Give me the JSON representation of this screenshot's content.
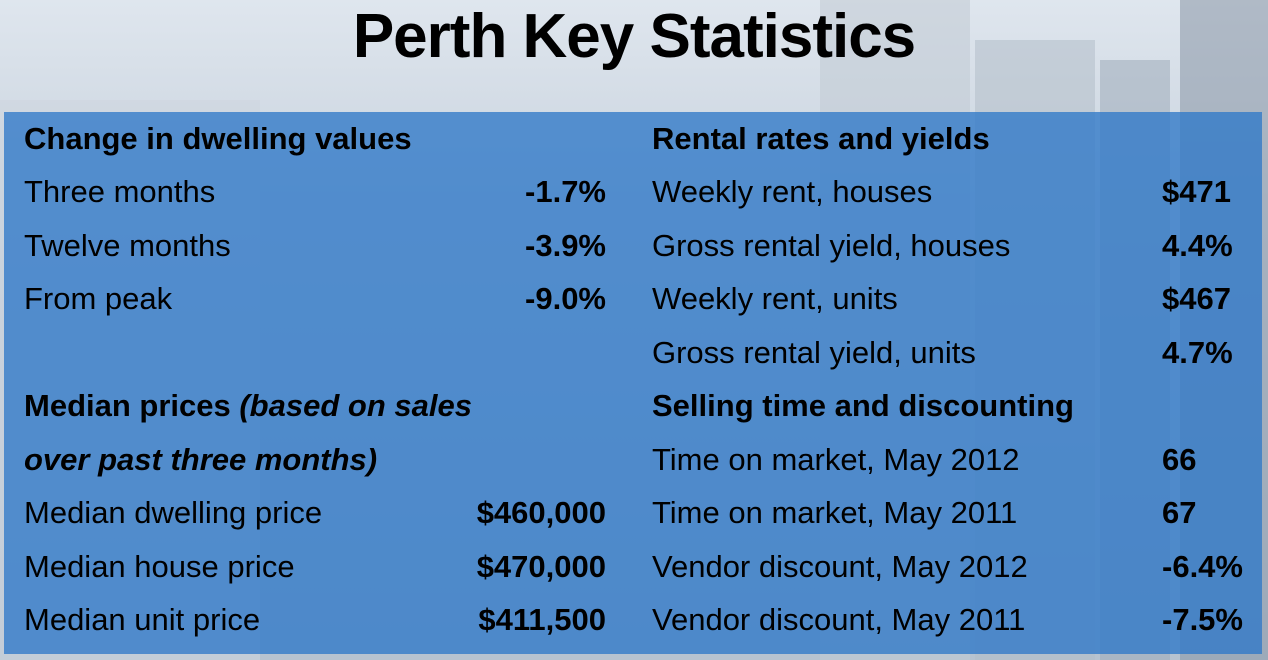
{
  "title": "Perth Key Statistics",
  "left": {
    "dwelling_heading": "Change in dwelling values",
    "dwelling_rows": [
      {
        "label": "Three months",
        "value": "-1.7%"
      },
      {
        "label": "Twelve months",
        "value": "-3.9%"
      },
      {
        "label": "From peak",
        "value": "-9.0%"
      }
    ],
    "median_heading_bold": "Median prices ",
    "median_heading_italic_1": "(based on sales",
    "median_heading_italic_2": "over past three months)",
    "median_rows": [
      {
        "label": "Median dwelling price",
        "value": "$460,000"
      },
      {
        "label": "Median house price",
        "value": "$470,000"
      },
      {
        "label": "Median unit price",
        "value": "$411,500"
      }
    ]
  },
  "right": {
    "rental_heading": "Rental rates and yields",
    "rental_rows": [
      {
        "label": "Weekly rent, houses",
        "value": "$471"
      },
      {
        "label": "Gross rental yield, houses",
        "value": "4.4%"
      },
      {
        "label": "Weekly rent, units",
        "value": "$467"
      },
      {
        "label": "Gross rental yield, units",
        "value": "4.7%"
      }
    ],
    "selling_heading": "Selling time and discounting",
    "selling_rows": [
      {
        "label": "Time on market, May 2012",
        "value": "66"
      },
      {
        "label": "Time on market, May 2011",
        "value": "67"
      },
      {
        "label": "Vendor discount, May 2012",
        "value": "-6.4%"
      },
      {
        "label": "Vendor discount, May 2011",
        "value": "-7.5%"
      }
    ]
  }
}
